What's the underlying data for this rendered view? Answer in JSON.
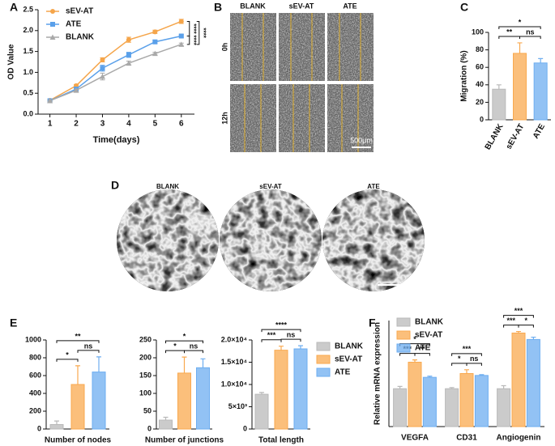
{
  "chart_data": [
    {
      "panel": "A",
      "type": "line",
      "ylabel": "OD Value",
      "xlabel": "Time(days)",
      "x": [
        1,
        2,
        3,
        4,
        5,
        6
      ],
      "xlim": [
        0.55,
        6.5
      ],
      "xticks": [
        1,
        2,
        3,
        4,
        5,
        6
      ],
      "ylim": [
        0,
        2.5
      ],
      "yticks": [
        {
          "value": 0,
          "label": "0.0"
        },
        0.5,
        {
          "value": 1,
          "label": "1.0"
        },
        1.5,
        {
          "value": 2,
          "label": "2.0"
        },
        2.5
      ],
      "legend": "upper left",
      "series": [
        {
          "name": "sEV-AT",
          "color": "#f5a54a",
          "marker": "circle",
          "values": [
            0.33,
            0.68,
            1.3,
            1.78,
            1.97,
            2.22
          ],
          "errors": [
            0.02,
            0.03,
            0.05,
            0.06,
            0.04,
            0.05
          ]
        },
        {
          "name": "ATE",
          "color": "#5aa0ea",
          "marker": "square",
          "values": [
            0.32,
            0.6,
            1.1,
            1.42,
            1.73,
            1.87
          ],
          "errors": [
            0.02,
            0.03,
            0.07,
            0.06,
            0.04,
            0.03
          ]
        },
        {
          "name": "BLANK",
          "color": "#a9a9a9",
          "marker": "triangle",
          "values": [
            0.32,
            0.57,
            0.9,
            1.22,
            1.45,
            1.67
          ],
          "errors": [
            0.02,
            0.03,
            0.08,
            0.05,
            0.03,
            0.03
          ]
        }
      ],
      "annotations": [
        "****",
        "****",
        "****"
      ]
    },
    {
      "panel": "C",
      "type": "bar",
      "ylabel": "Migration (%)",
      "categories": [
        "BLANK",
        "sEV-AT",
        "ATE"
      ],
      "values": [
        35,
        76,
        65
      ],
      "errors": [
        5,
        12,
        5
      ],
      "colors": [
        "#b9b9b9",
        "#f9a94f",
        "#6eaef0"
      ],
      "ylim": [
        0,
        100
      ],
      "yticks": [
        0,
        20,
        40,
        60,
        80,
        100
      ],
      "annotations": [
        [
          "**",
          "ns",
          "*"
        ]
      ]
    },
    {
      "panel": "E",
      "type": "bar",
      "categories": [
        "Number of nodes"
      ],
      "series": [
        {
          "color": "#b9b9b9",
          "values": [
            50
          ],
          "errors": [
            40
          ]
        },
        {
          "color": "#f9a94f",
          "values": [
            500
          ],
          "errors": [
            210
          ]
        },
        {
          "color": "#6eaef0",
          "values": [
            640
          ],
          "errors": [
            170
          ]
        }
      ],
      "ylim": [
        0,
        1000
      ],
      "yticks": [
        0,
        200,
        400,
        600,
        800,
        1000
      ],
      "annotations": [
        [
          "*",
          "ns",
          "**"
        ]
      ]
    },
    {
      "type": "bar",
      "categories": [
        "Number of junctions"
      ],
      "series": [
        {
          "color": "#b9b9b9",
          "values": [
            25
          ],
          "errors": [
            8
          ]
        },
        {
          "color": "#f9a94f",
          "values": [
            157
          ],
          "errors": [
            45
          ]
        },
        {
          "color": "#6eaef0",
          "values": [
            172
          ],
          "errors": [
            25
          ]
        }
      ],
      "ylim": [
        0,
        250
      ],
      "yticks": [
        0,
        50,
        100,
        150,
        200,
        250
      ],
      "annotations": [
        [
          "*",
          "ns",
          "*"
        ]
      ]
    },
    {
      "type": "bar",
      "categories": [
        "Total length"
      ],
      "legend": "right",
      "series": [
        {
          "name": "BLANK",
          "color": "#b9b9b9",
          "values": [
            7800
          ],
          "errors": [
            400
          ]
        },
        {
          "name": "sEV-AT",
          "color": "#f9a94f",
          "values": [
            17700
          ],
          "errors": [
            900
          ]
        },
        {
          "name": "ATE",
          "color": "#6eaef0",
          "values": [
            18000
          ],
          "errors": [
            700
          ]
        }
      ],
      "ylim": [
        0,
        20000
      ],
      "yticks": [
        0,
        {
          "value": 5000,
          "label": "5×10³"
        },
        {
          "value": 10000,
          "label": "1.0×10⁴"
        },
        {
          "value": 15000,
          "label": "1.5×10⁴"
        },
        {
          "value": 20000,
          "label": "2.0×10⁴"
        }
      ],
      "annotations": [
        [
          "***",
          "ns",
          "****"
        ]
      ]
    },
    {
      "panel": "F",
      "type": "bar",
      "ylabel": "Relative mRNA expression",
      "legend": "upper left",
      "categories": [
        "VEGFA",
        "CD31",
        "Angiogenin"
      ],
      "series": [
        {
          "name": "BLANK",
          "color": "#b9b9b9",
          "values": [
            1.0,
            1.0,
            1.0
          ],
          "errors": [
            0.06,
            0.03,
            0.08
          ]
        },
        {
          "name": "sEV-AT",
          "color": "#f9a94f",
          "values": [
            1.7,
            1.4,
            2.47
          ],
          "errors": [
            0.06,
            0.1,
            0.04
          ]
        },
        {
          "name": "ATE",
          "color": "#6eaef0",
          "values": [
            1.3,
            1.35,
            2.3
          ],
          "errors": [
            0.03,
            0.02,
            0.06
          ]
        }
      ],
      "ylim": [
        0,
        2.8
      ],
      "annotations": [
        [
          "***",
          "**",
          "*"
        ],
        [
          "*",
          "ns",
          "***"
        ],
        [
          "***",
          "*",
          "***"
        ]
      ]
    }
  ],
  "micrographs": {
    "B": {
      "panel": "B",
      "columns": [
        "BLANK",
        "sEV-AT",
        "ATE"
      ],
      "rows": [
        "0h",
        "12h"
      ],
      "scale": "500μm"
    },
    "D": {
      "panel": "D",
      "columns": [
        "BLANK",
        "sEV-AT",
        "ATE"
      ]
    }
  }
}
